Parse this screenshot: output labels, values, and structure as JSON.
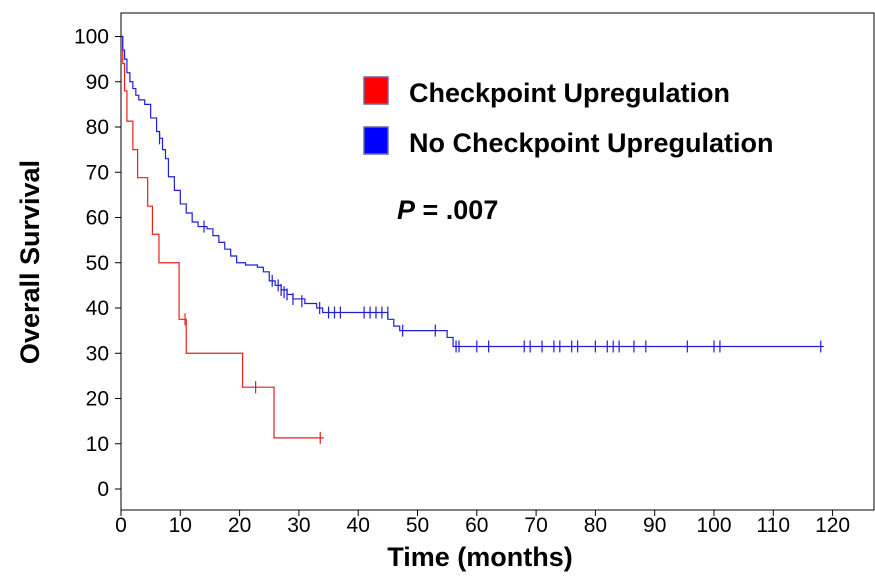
{
  "chart_data": {
    "type": "line",
    "subtype": "kaplan-meier step",
    "xlabel": "Time (months)",
    "ylabel": "Overall Survival",
    "xlim": [
      0,
      127
    ],
    "ylim": [
      -2,
      106
    ],
    "xticks": [
      0,
      10,
      20,
      30,
      40,
      50,
      60,
      70,
      80,
      90,
      100,
      110,
      120
    ],
    "yticks": [
      0,
      10,
      20,
      30,
      40,
      50,
      60,
      70,
      80,
      90,
      100
    ],
    "grid": false,
    "legend_position": "top-right",
    "annotation": {
      "p_label": "P",
      "p_value": " = .007"
    },
    "series": [
      {
        "name": "Checkpoint Upregulation",
        "color": "#e8201c",
        "legend_fill": "#ff0000",
        "steps": [
          [
            0,
            100
          ],
          [
            0.3,
            94
          ],
          [
            0.6,
            88
          ],
          [
            1.0,
            81.3
          ],
          [
            2.0,
            75
          ],
          [
            2.8,
            68.8
          ],
          [
            4.5,
            62.5
          ],
          [
            5.3,
            56.3
          ],
          [
            6.4,
            50
          ],
          [
            9.8,
            37.5
          ],
          [
            11.0,
            30
          ],
          [
            20.5,
            22.5
          ],
          [
            25.8,
            11.3
          ],
          [
            34.2,
            11.3
          ]
        ],
        "censored": [
          [
            10.8,
            37.5
          ],
          [
            22.7,
            22.5
          ],
          [
            33.6,
            11.3
          ]
        ]
      },
      {
        "name": "No Checkpoint Upregulation",
        "color": "#1f1fd6",
        "legend_fill": "#0000ff",
        "steps": [
          [
            0,
            100
          ],
          [
            0.3,
            97
          ],
          [
            0.6,
            95
          ],
          [
            1.0,
            92
          ],
          [
            1.5,
            90
          ],
          [
            2.0,
            88.5
          ],
          [
            2.5,
            87
          ],
          [
            3.0,
            86
          ],
          [
            4.0,
            85
          ],
          [
            5.0,
            82
          ],
          [
            6.0,
            79
          ],
          [
            6.5,
            77.5
          ],
          [
            7.0,
            75
          ],
          [
            7.5,
            73
          ],
          [
            8.0,
            69
          ],
          [
            9.0,
            66
          ],
          [
            10.0,
            63
          ],
          [
            11.0,
            61
          ],
          [
            12.0,
            59
          ],
          [
            13.0,
            58
          ],
          [
            14.5,
            57.5
          ],
          [
            15.5,
            56
          ],
          [
            16.5,
            54.5
          ],
          [
            17.5,
            53
          ],
          [
            18.5,
            51.5
          ],
          [
            19.5,
            50
          ],
          [
            21.0,
            49.5
          ],
          [
            23.0,
            49
          ],
          [
            24.0,
            48
          ],
          [
            25.0,
            46
          ],
          [
            26.0,
            45
          ],
          [
            27.0,
            44
          ],
          [
            28.0,
            43
          ],
          [
            29.0,
            42
          ],
          [
            31.0,
            41
          ],
          [
            33.0,
            40
          ],
          [
            34.0,
            39
          ],
          [
            45.0,
            37.5
          ],
          [
            46.0,
            36
          ],
          [
            47.0,
            35
          ],
          [
            55.0,
            33.5
          ],
          [
            56.0,
            31.5
          ],
          [
            118.5,
            31.5
          ]
        ],
        "censored": [
          [
            6.5,
            77.5
          ],
          [
            14,
            58
          ],
          [
            25.5,
            46
          ],
          [
            26.5,
            45
          ],
          [
            27,
            44
          ],
          [
            27.5,
            43.5
          ],
          [
            28,
            43
          ],
          [
            29,
            42
          ],
          [
            30.5,
            41.5
          ],
          [
            33.5,
            40
          ],
          [
            35,
            39
          ],
          [
            36,
            39
          ],
          [
            37,
            39
          ],
          [
            41,
            39
          ],
          [
            42,
            39
          ],
          [
            43,
            39
          ],
          [
            44,
            39
          ],
          [
            45,
            39
          ],
          [
            47.5,
            35
          ],
          [
            53,
            35
          ],
          [
            56.5,
            31.5
          ],
          [
            57,
            31.5
          ],
          [
            60,
            31.5
          ],
          [
            62,
            31.5
          ],
          [
            68,
            31.5
          ],
          [
            69,
            31.5
          ],
          [
            71,
            31.5
          ],
          [
            73,
            31.5
          ],
          [
            74,
            31.5
          ],
          [
            76,
            31.5
          ],
          [
            77,
            31.5
          ],
          [
            80,
            31.5
          ],
          [
            82,
            31.5
          ],
          [
            83,
            31.5
          ],
          [
            84,
            31.5
          ],
          [
            86.5,
            31.5
          ],
          [
            88.5,
            31.5
          ],
          [
            95.5,
            31.5
          ],
          [
            100,
            31.5
          ],
          [
            101,
            31.5
          ],
          [
            118,
            31.5
          ]
        ]
      }
    ]
  }
}
